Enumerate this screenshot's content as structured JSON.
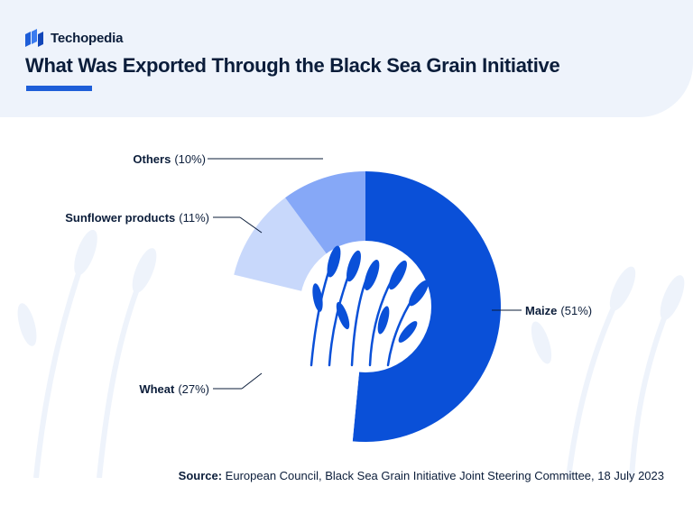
{
  "brand": {
    "name": "Techopedia"
  },
  "title": "What Was Exported Through the Black Sea Grain Initiative",
  "colors": {
    "accent": "#1e5ed8",
    "maize": "#0a50d8",
    "wheat": "#ffffff",
    "sunflower": "#c8d8fb",
    "others": "#86a8f7",
    "text": "#0b1d3a",
    "header_bg": "#eef3fb"
  },
  "chart_data": {
    "type": "pie",
    "title": "What Was Exported Through the Black Sea Grain Initiative",
    "categories": [
      "Maize",
      "Wheat",
      "Sunflower products",
      "Others"
    ],
    "values": [
      51,
      27,
      11,
      10
    ],
    "value_labels": [
      "(51%)",
      "(27%)",
      "(11%)",
      "(10%)"
    ],
    "series": [
      {
        "values": [
          51,
          27,
          11,
          10
        ]
      }
    ],
    "grid": false,
    "legend": "none"
  },
  "source": {
    "label": "Source:",
    "text": " European Council, Black Sea Grain Initiative Joint Steering Committee, 18 July 2023"
  }
}
